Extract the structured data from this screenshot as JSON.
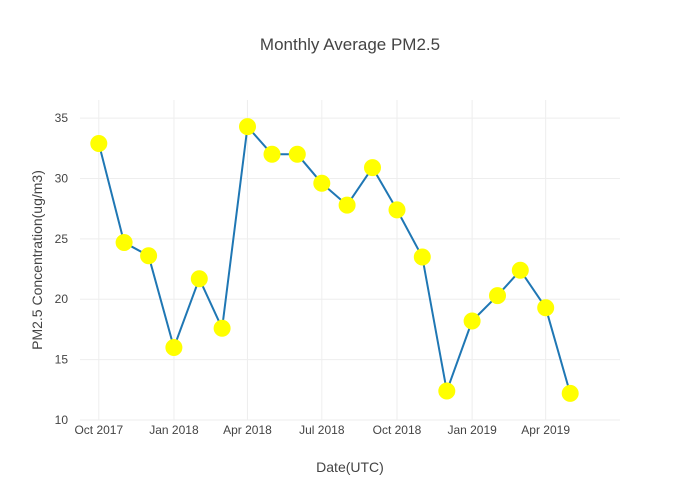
{
  "chart_data": {
    "type": "line",
    "title": "Monthly Average PM2.5",
    "xlabel": "Date(UTC)",
    "ylabel": "PM2.5 Concentration(ug/m3)",
    "ylim": [
      10,
      36.5
    ],
    "xlim": [
      "2017-09-08",
      "2019-07-01"
    ],
    "yticks": [
      10,
      15,
      20,
      25,
      30,
      35
    ],
    "xticks": [
      {
        "date": "2017-10-01",
        "label": "Oct 2017"
      },
      {
        "date": "2018-01-01",
        "label": "Jan 2018"
      },
      {
        "date": "2018-04-01",
        "label": "Apr 2018"
      },
      {
        "date": "2018-07-01",
        "label": "Jul 2018"
      },
      {
        "date": "2018-10-01",
        "label": "Oct 2018"
      },
      {
        "date": "2019-01-01",
        "label": "Jan 2019"
      },
      {
        "date": "2019-04-01",
        "label": "Apr 2019"
      }
    ],
    "grid": true,
    "line_color": "#1f77b4",
    "marker_color": "#ffff00",
    "series": [
      {
        "x": [
          "2017-10-01",
          "2017-11-01",
          "2017-12-01",
          "2018-01-01",
          "2018-02-01",
          "2018-03-01",
          "2018-04-01",
          "2018-05-01",
          "2018-06-01",
          "2018-07-01",
          "2018-08-01",
          "2018-09-01",
          "2018-10-01",
          "2018-11-01",
          "2018-12-01",
          "2019-01-01",
          "2019-02-01",
          "2019-03-01",
          "2019-04-01",
          "2019-05-01"
        ],
        "y": [
          32.9,
          24.7,
          23.6,
          16.0,
          21.7,
          17.6,
          34.3,
          32.0,
          32.0,
          29.6,
          27.8,
          30.9,
          27.4,
          23.5,
          12.4,
          18.2,
          20.3,
          22.4,
          19.3,
          12.2
        ]
      }
    ]
  }
}
